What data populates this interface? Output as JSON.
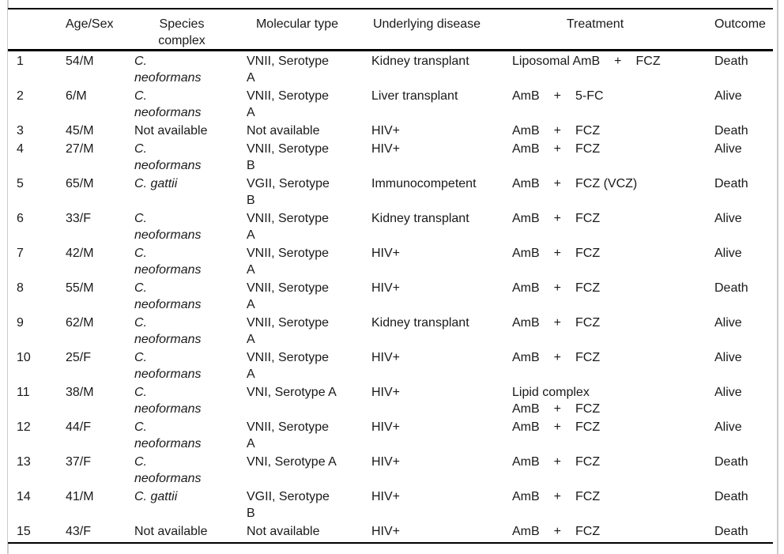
{
  "colors": {
    "rule": "#000000",
    "frame_line": "#cccccc",
    "text": "#1a1a1a",
    "background": "#ffffff"
  },
  "table": {
    "headers": {
      "num": "",
      "age_sex": "Age/Sex",
      "species": [
        "Species",
        "complex"
      ],
      "molecular": "Molecular type",
      "disease": "Underlying disease",
      "treatment": "Treatment",
      "outcome": "Outcome"
    },
    "rows": [
      {
        "num": "1",
        "age_sex": "54/M",
        "species": {
          "italic": true,
          "lines": [
            "C.",
            "neoformans"
          ]
        },
        "molecular": [
          "VNII, Serotype",
          "A"
        ],
        "disease": "Kidney transplant",
        "treatment": [
          [
            "Liposomal AmB",
            "+",
            "FCZ"
          ]
        ],
        "outcome": "Death"
      },
      {
        "num": "2",
        "age_sex": "6/M",
        "species": {
          "italic": true,
          "lines": [
            "C.",
            "neoformans"
          ]
        },
        "molecular": [
          "VNII, Serotype",
          "A"
        ],
        "disease": "Liver transplant",
        "treatment": [
          [
            "AmB",
            "+",
            "5-FC"
          ]
        ],
        "outcome": "Alive"
      },
      {
        "num": "3",
        "age_sex": "45/M",
        "species": {
          "italic": false,
          "lines": [
            "Not available"
          ]
        },
        "molecular": [
          "Not available"
        ],
        "disease": "HIV+",
        "treatment": [
          [
            "AmB",
            "+",
            "FCZ"
          ]
        ],
        "outcome": "Death"
      },
      {
        "num": "4",
        "age_sex": "27/M",
        "species": {
          "italic": true,
          "lines": [
            "C.",
            "neoformans"
          ]
        },
        "molecular": [
          "VNII, Serotype",
          "B"
        ],
        "disease": "HIV+",
        "treatment": [
          [
            "AmB",
            "+",
            "FCZ"
          ]
        ],
        "outcome": "Alive"
      },
      {
        "num": "5",
        "age_sex": "65/M",
        "species": {
          "italic": true,
          "lines": [
            "C. gattii"
          ]
        },
        "molecular": [
          "VGII, Serotype",
          "B"
        ],
        "disease": "Immunocompetent",
        "treatment": [
          [
            "AmB",
            "+",
            "FCZ (VCZ)"
          ]
        ],
        "outcome": "Death"
      },
      {
        "num": "6",
        "age_sex": "33/F",
        "species": {
          "italic": true,
          "lines": [
            "C.",
            "neoformans"
          ]
        },
        "molecular": [
          "VNII, Serotype",
          "A"
        ],
        "disease": "Kidney transplant",
        "treatment": [
          [
            "AmB",
            "+",
            "FCZ"
          ]
        ],
        "outcome": "Alive"
      },
      {
        "num": "7",
        "age_sex": "42/M",
        "species": {
          "italic": true,
          "lines": [
            "C.",
            "neoformans"
          ]
        },
        "molecular": [
          "VNII, Serotype",
          "A"
        ],
        "disease": "HIV+",
        "treatment": [
          [
            "AmB",
            "+",
            "FCZ"
          ]
        ],
        "outcome": "Alive"
      },
      {
        "num": "8",
        "age_sex": "55/M",
        "species": {
          "italic": true,
          "lines": [
            "C.",
            "neoformans"
          ]
        },
        "molecular": [
          "VNII, Serotype",
          "A"
        ],
        "disease": "HIV+",
        "treatment": [
          [
            "AmB",
            "+",
            "FCZ"
          ]
        ],
        "outcome": "Death"
      },
      {
        "num": "9",
        "age_sex": "62/M",
        "species": {
          "italic": true,
          "lines": [
            "C.",
            "neoformans"
          ]
        },
        "molecular": [
          "VNII, Serotype",
          "A"
        ],
        "disease": "Kidney transplant",
        "treatment": [
          [
            "AmB",
            "+",
            "FCZ"
          ]
        ],
        "outcome": "Alive"
      },
      {
        "num": "10",
        "age_sex": "25/F",
        "species": {
          "italic": true,
          "lines": [
            "C.",
            "neoformans"
          ]
        },
        "molecular": [
          "VNII, Serotype",
          "A"
        ],
        "disease": "HIV+",
        "treatment": [
          [
            "AmB",
            "+",
            "FCZ"
          ]
        ],
        "outcome": "Alive"
      },
      {
        "num": "11",
        "age_sex": "38/M",
        "species": {
          "italic": true,
          "lines": [
            "C.",
            "neoformans"
          ]
        },
        "molecular": [
          "VNI, Serotype A"
        ],
        "disease": "HIV+",
        "treatment": [
          [
            "Lipid complex"
          ],
          [
            "AmB",
            "+",
            "FCZ"
          ]
        ],
        "outcome": "Alive"
      },
      {
        "num": "12",
        "age_sex": "44/F",
        "species": {
          "italic": true,
          "lines": [
            "C.",
            "neoformans"
          ]
        },
        "molecular": [
          "VNII, Serotype",
          "A"
        ],
        "disease": "HIV+",
        "treatment": [
          [
            "AmB",
            "+",
            "FCZ"
          ]
        ],
        "outcome": "Alive"
      },
      {
        "num": "13",
        "age_sex": "37/F",
        "species": {
          "italic": true,
          "lines": [
            "C.",
            "neoformans"
          ]
        },
        "molecular": [
          "VNI, Serotype A"
        ],
        "disease": "HIV+",
        "treatment": [
          [
            "AmB",
            "+",
            "FCZ"
          ]
        ],
        "outcome": "Death"
      },
      {
        "num": "14",
        "age_sex": "41/M",
        "species": {
          "italic": true,
          "lines": [
            "C. gattii"
          ]
        },
        "molecular": [
          "VGII, Serotype",
          "B"
        ],
        "disease": "HIV+",
        "treatment": [
          [
            "AmB",
            "+",
            "FCZ"
          ]
        ],
        "outcome": "Death"
      },
      {
        "num": "15",
        "age_sex": "43/F",
        "species": {
          "italic": false,
          "lines": [
            "Not available"
          ]
        },
        "molecular": [
          "Not available"
        ],
        "disease": "HIV+",
        "treatment": [
          [
            "AmB",
            "+",
            "FCZ"
          ]
        ],
        "outcome": "Death"
      }
    ]
  }
}
